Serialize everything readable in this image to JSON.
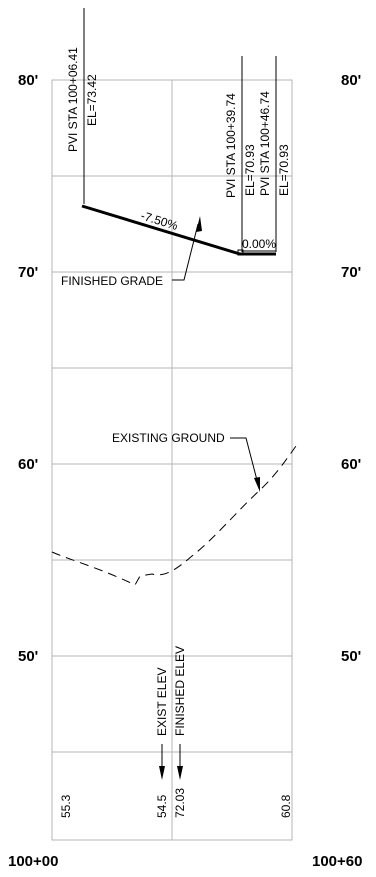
{
  "elevation_labels": {
    "e80": "80'",
    "e70": "70'",
    "e60": "60'",
    "e50": "50'"
  },
  "stations": {
    "start": "100+00",
    "end": "100+60"
  },
  "pvi_1": {
    "station": "PVI STA 100+06.41",
    "elevation": "EL=73.42"
  },
  "pvi_2": {
    "station": "PVI STA 100+39.74",
    "elevation": "EL=70.93"
  },
  "pvi_3": {
    "station": "PVI STA 100+46.74",
    "elevation": "EL=70.93"
  },
  "grades": {
    "first": "-7.50%",
    "second": "0.00%"
  },
  "callouts": {
    "finished_grade": "FINISHED GRADE",
    "existing_ground": "EXISTING GROUND"
  },
  "station_20": {
    "exist_elev_label": "EXIST ELEV",
    "finished_elev_label": "FINISHED ELEV",
    "exist_value": "54.5",
    "finished_value": "72.03"
  },
  "bottom_values": {
    "left": "55.3",
    "right": "60.8"
  }
}
